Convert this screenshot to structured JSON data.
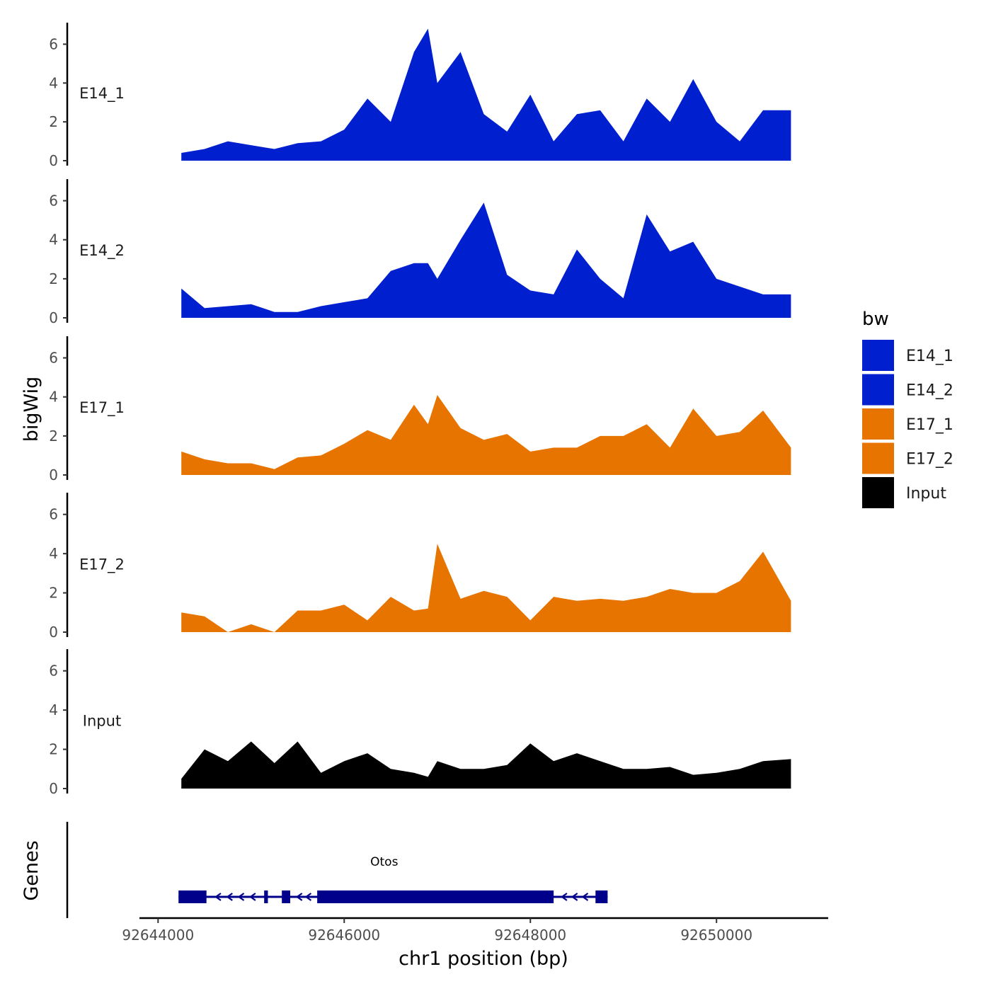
{
  "chart_data": {
    "type": "area",
    "ylabel": "bigWig",
    "xlabel": "chr1 position (bp)",
    "xlim": [
      92643800,
      92651200
    ],
    "ylim": [
      0,
      7
    ],
    "x_ticks": [
      92644000,
      92646000,
      92648000,
      92650000
    ],
    "x_tick_labels": [
      "92644000",
      "92646000",
      "92648000",
      "92650000"
    ],
    "y_ticks": [
      0,
      2,
      4,
      6
    ],
    "y_tick_labels": [
      "0",
      "2",
      "4",
      "6"
    ],
    "legend": {
      "title": "bw",
      "position": "right",
      "entries": [
        {
          "label": "E14_1",
          "color": "#0020D0"
        },
        {
          "label": "E14_2",
          "color": "#0020D0"
        },
        {
          "label": "E17_1",
          "color": "#E87400"
        },
        {
          "label": "E17_2",
          "color": "#E87400"
        },
        {
          "label": "Input",
          "color": "#000000"
        }
      ]
    },
    "x": [
      92644250,
      92644500,
      92644750,
      92645000,
      92645250,
      92645500,
      92645750,
      92646000,
      92646250,
      92646500,
      92646750,
      92646900,
      92647000,
      92647250,
      92647500,
      92647750,
      92648000,
      92648250,
      92648500,
      92648750,
      92649000,
      92649250,
      92649500,
      92649750,
      92650000,
      92650250,
      92650500,
      92650800
    ],
    "series": [
      {
        "name": "E14_1",
        "color": "#0020D0",
        "values": [
          0.4,
          0.6,
          1.0,
          0.8,
          0.6,
          0.9,
          1.0,
          1.6,
          3.2,
          2.0,
          5.6,
          6.8,
          4.0,
          5.6,
          2.4,
          1.5,
          3.4,
          1.0,
          2.4,
          2.6,
          1.0,
          3.2,
          2.0,
          4.2,
          2.0,
          1.0,
          2.6,
          2.6
        ]
      },
      {
        "name": "E14_2",
        "color": "#0020D0",
        "values": [
          1.5,
          0.5,
          0.6,
          0.7,
          0.3,
          0.3,
          0.6,
          0.8,
          1.0,
          2.4,
          2.8,
          2.8,
          2.0,
          4.0,
          5.9,
          2.2,
          1.4,
          1.2,
          3.5,
          2.0,
          1.0,
          5.3,
          3.4,
          3.9,
          2.0,
          1.6,
          1.2,
          1.2
        ]
      },
      {
        "name": "E17_1",
        "color": "#E87400",
        "values": [
          1.2,
          0.8,
          0.6,
          0.6,
          0.3,
          0.9,
          1.0,
          1.6,
          2.3,
          1.8,
          3.6,
          2.6,
          4.1,
          2.4,
          1.8,
          2.1,
          1.2,
          1.4,
          1.4,
          2.0,
          2.0,
          2.6,
          1.4,
          3.4,
          2.0,
          2.2,
          3.3,
          1.4
        ]
      },
      {
        "name": "E17_2",
        "color": "#E87400",
        "values": [
          1.0,
          0.8,
          0.0,
          0.4,
          0.0,
          1.1,
          1.1,
          1.4,
          0.6,
          1.8,
          1.1,
          1.2,
          4.5,
          1.7,
          2.1,
          1.8,
          0.6,
          1.8,
          1.6,
          1.7,
          1.6,
          1.8,
          2.2,
          2.0,
          2.0,
          2.6,
          4.1,
          1.6
        ]
      },
      {
        "name": "Input",
        "color": "#000000",
        "values": [
          0.5,
          2.0,
          1.4,
          2.4,
          1.3,
          2.4,
          0.8,
          1.4,
          1.8,
          1.0,
          0.8,
          0.6,
          1.4,
          1.0,
          1.0,
          1.2,
          2.3,
          1.4,
          1.8,
          1.4,
          1.0,
          1.0,
          1.1,
          0.7,
          0.8,
          1.0,
          1.4,
          1.5
        ]
      }
    ],
    "genes": {
      "track_label": "Genes",
      "gene_name": "Otos",
      "color": "#00008B",
      "start": 92644220,
      "end": 92648830,
      "strand": "-",
      "exons": [
        [
          92644220,
          92644520
        ],
        [
          92645140,
          92645180
        ],
        [
          92645330,
          92645420
        ],
        [
          92645710,
          92648250
        ],
        [
          92648700,
          92648830
        ]
      ]
    }
  }
}
